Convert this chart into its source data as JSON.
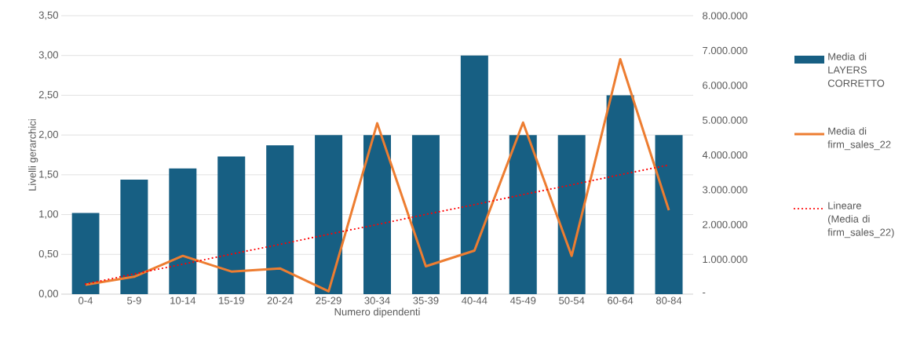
{
  "chart_data": {
    "type": "bar",
    "xlabel": "Numero dipendenti",
    "ylabel": "Livelli gerarchici",
    "categories": [
      "0-4",
      "5-9",
      "10-14",
      "15-19",
      "20-24",
      "25-29",
      "30-34",
      "35-39",
      "40-44",
      "45-49",
      "50-54",
      "60-64",
      "80-84"
    ],
    "ylim": [
      0,
      3.5
    ],
    "yticks": [
      {
        "value": 0,
        "label": "0,00"
      },
      {
        "value": 0.5,
        "label": "0,50"
      },
      {
        "value": 1,
        "label": "1,00"
      },
      {
        "value": 1.5,
        "label": "1,50"
      },
      {
        "value": 2,
        "label": "2,00"
      },
      {
        "value": 2.5,
        "label": "2,50"
      },
      {
        "value": 3,
        "label": "3,00"
      },
      {
        "value": 3.5,
        "label": "3,50"
      }
    ],
    "y2lim": [
      0,
      8000000
    ],
    "y2ticks": [
      {
        "value": 0,
        "label": "-"
      },
      {
        "value": 1000000,
        "label": "1.000.000"
      },
      {
        "value": 2000000,
        "label": "2.000.000"
      },
      {
        "value": 3000000,
        "label": "3.000.000"
      },
      {
        "value": 4000000,
        "label": "4.000.000"
      },
      {
        "value": 5000000,
        "label": "5.000.000"
      },
      {
        "value": 6000000,
        "label": "6.000.000"
      },
      {
        "value": 7000000,
        "label": "7.000.000"
      },
      {
        "value": 8000000,
        "label": "8.000.000"
      }
    ],
    "grid": "y",
    "legend": "right",
    "series": [
      {
        "name": "Media di LAYERS CORRETTO",
        "color": "#175f83",
        "values": [
          1.02,
          1.44,
          1.58,
          1.73,
          1.87,
          2,
          2,
          2,
          3,
          2,
          2,
          2.5,
          2
        ]
      },
      {
        "name": "Media di firm_sales_22",
        "type": "line",
        "axis": "y2",
        "color": "#ed7d31",
        "values": [
          270000,
          500000,
          1100000,
          650000,
          740000,
          80000,
          4910000,
          800000,
          1250000,
          4930000,
          1100000,
          6750000,
          2410000
        ]
      },
      {
        "name": "Lineare (Media di firm_sales_22)",
        "type": "line",
        "axis": "y2",
        "color": "#ff0000",
        "line_style": "dotted",
        "values": [
          290000,
          580000,
          860000,
          1150000,
          1430000,
          1720000,
          2000000,
          2290000,
          2570000,
          2860000,
          3140000,
          3430000,
          3710000
        ]
      }
    ]
  }
}
